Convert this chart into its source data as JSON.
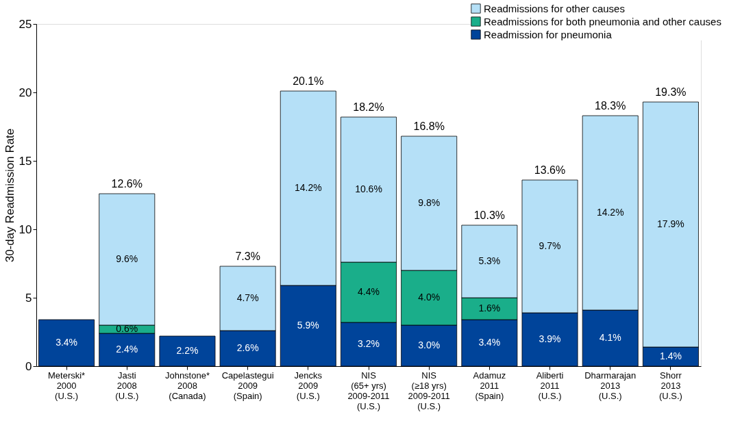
{
  "chart_data": {
    "type": "bar",
    "stacked": true,
    "ylabel": "30-day Readmission Rate",
    "categories": [
      "Meterski*\n2000\n(U.S.)",
      "Jasti\n2008\n(U.S.)",
      "Johnstone*\n2008\n(Canada)",
      "Capelastegui\n2009\n(Spain)",
      "Jencks\n2009\n(U.S.)",
      "NIS\n(65+ yrs)\n2009-2011\n(U.S.)",
      "NIS\n(≥18 yrs)\n2009-2011\n(U.S.)",
      "Adamuz\n2011\n(Spain)",
      "Aliberti\n2011\n(U.S.)",
      "Dharmarajan\n2013\n(U.S.)",
      "Shorr\n2013\n(U.S.)"
    ],
    "series": [
      {
        "name": "Readmission for pneumonia",
        "color": "#00449a",
        "values": [
          3.4,
          2.4,
          2.2,
          2.6,
          5.9,
          3.2,
          3.0,
          3.4,
          3.9,
          4.1,
          1.4
        ],
        "value_labels": [
          "3.4%",
          "2.4%",
          "2.2%",
          "2.6%",
          "5.9%",
          "3.2%",
          "3.0%",
          "3.4%",
          "3.9%",
          "4.1%",
          "1.4%"
        ]
      },
      {
        "name": "Readmissions for both pneumonia and other causes",
        "color": "#1aae8a",
        "values": [
          null,
          0.6,
          null,
          null,
          null,
          4.4,
          4.0,
          1.6,
          null,
          null,
          null
        ],
        "value_labels": [
          null,
          "0.6%",
          null,
          null,
          null,
          "4.4%",
          "4.0%",
          "1.6%",
          null,
          null,
          null
        ]
      },
      {
        "name": "Readmissions for other causes",
        "color": "#b5e0f7",
        "values": [
          null,
          9.6,
          null,
          4.7,
          14.2,
          10.6,
          9.8,
          5.3,
          9.7,
          14.2,
          17.9
        ],
        "value_labels": [
          null,
          "9.6%",
          null,
          "4.7%",
          "14.2%",
          "10.6%",
          "9.8%",
          "5.3%",
          "9.7%",
          "14.2%",
          "17.9%"
        ]
      }
    ],
    "totals": [
      null,
      "12.6%",
      null,
      "7.3%",
      "20.1%",
      "18.2%",
      "16.8%",
      "10.3%",
      "13.6%",
      "18.3%",
      "19.3%"
    ],
    "ylim": [
      0,
      25
    ],
    "yticks": [
      0,
      5,
      10,
      15,
      20,
      25
    ],
    "grid": false,
    "legend": "top right"
  }
}
